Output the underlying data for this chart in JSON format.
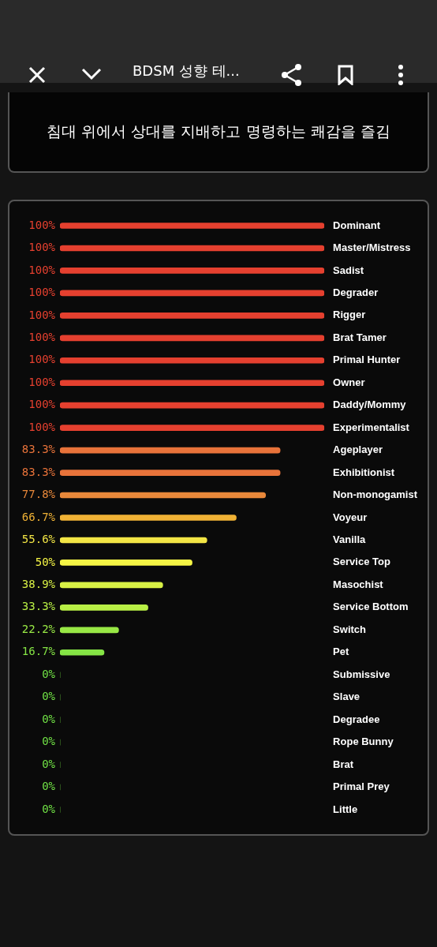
{
  "chart_data": {
    "type": "bar",
    "orientation": "horizontal",
    "title": "BDSM 성향 테...",
    "subtitle": "침대 위에서 상대를 지배하고 명령하는 쾌감을 즐김",
    "categories": [
      "Dominant",
      "Master/Mistress",
      "Sadist",
      "Degrader",
      "Rigger",
      "Brat Tamer",
      "Primal Hunter",
      "Owner",
      "Daddy/Mommy",
      "Experimentalist",
      "Ageplayer",
      "Exhibitionist",
      "Non-monogamist",
      "Voyeur",
      "Vanilla",
      "Service Top",
      "Masochist",
      "Service Bottom",
      "Switch",
      "Pet",
      "Submissive",
      "Slave",
      "Degradee",
      "Rope Bunny",
      "Brat",
      "Primal Prey",
      "Little"
    ],
    "values": [
      100,
      100,
      100,
      100,
      100,
      100,
      100,
      100,
      100,
      100,
      83.3,
      83.3,
      77.8,
      66.7,
      55.6,
      50,
      38.9,
      33.3,
      22.2,
      16.7,
      0,
      0,
      0,
      0,
      0,
      0,
      0
    ],
    "value_labels": [
      "100%",
      "100%",
      "100%",
      "100%",
      "100%",
      "100%",
      "100%",
      "100%",
      "100%",
      "100%",
      "83.3%",
      "83.3%",
      "77.8%",
      "66.7%",
      "55.6%",
      "50%",
      "38.9%",
      "33.3%",
      "22.2%",
      "16.7%",
      "0%",
      "0%",
      "0%",
      "0%",
      "0%",
      "0%",
      "0%"
    ],
    "colors": [
      "#e5402f",
      "#e5402f",
      "#e5402f",
      "#e5402f",
      "#e5402f",
      "#e5402f",
      "#e5402f",
      "#e5402f",
      "#e5402f",
      "#e5402f",
      "#e8733a",
      "#e8733a",
      "#e8883a",
      "#f0b235",
      "#f2e545",
      "#f5f545",
      "#d8f045",
      "#b8ef45",
      "#98e845",
      "#85e445",
      "#70e045",
      "#70e045",
      "#70e045",
      "#70e045",
      "#70e045",
      "#70e045",
      "#70e045"
    ],
    "xlim": [
      0,
      100
    ],
    "tick_labels": "y",
    "grid": false,
    "legend": false
  }
}
